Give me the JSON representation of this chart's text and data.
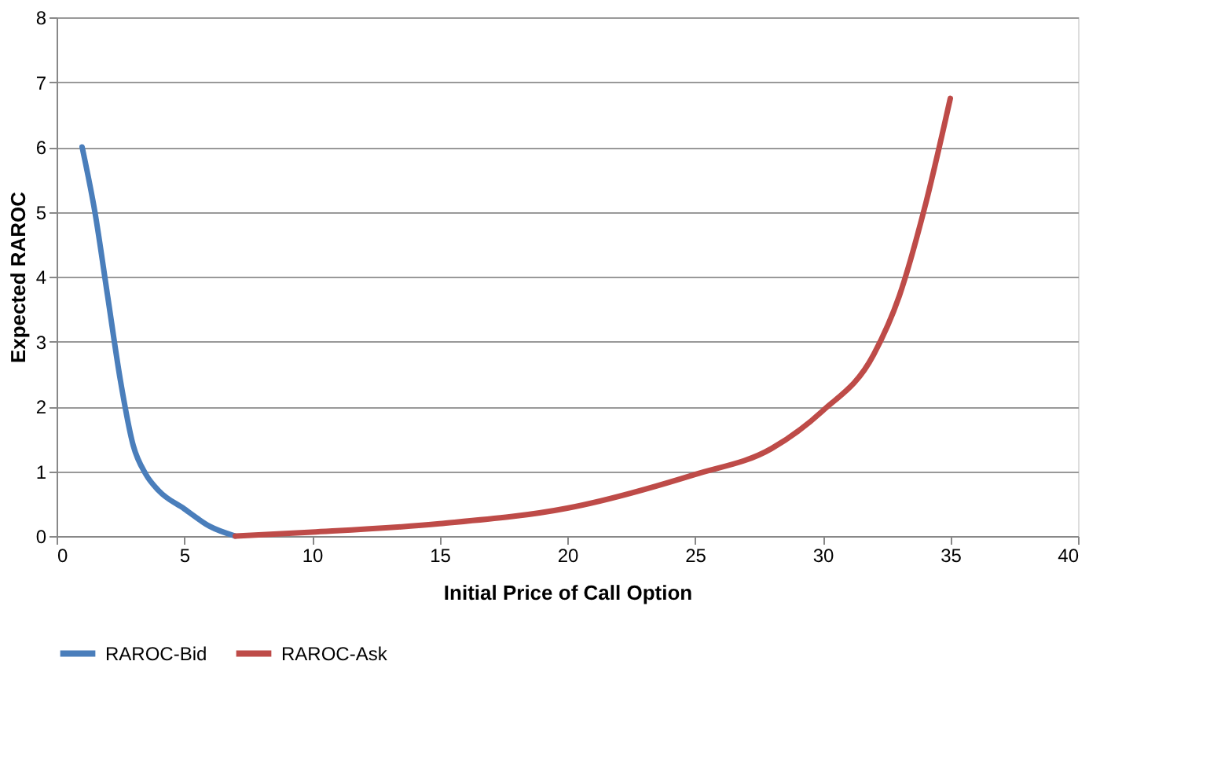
{
  "chart_data": {
    "type": "line",
    "xlabel": "Initial Price of Call Option",
    "ylabel": "Expected RAROC",
    "xlim": [
      0,
      40
    ],
    "xticks": [
      0,
      5,
      10,
      15,
      20,
      25,
      30,
      35,
      40
    ],
    "ylim": [
      0,
      8
    ],
    "yticks": [
      0,
      1,
      2,
      3,
      4,
      5,
      6,
      7,
      8
    ],
    "grid": "y",
    "legend": "bottom",
    "marker": "none",
    "line_style": "solid",
    "series": [
      {
        "name": "RAROC-Bid",
        "color": "#4a7ebb",
        "x": [
          1,
          1.5,
          2,
          2.5,
          3,
          3.5,
          4,
          5,
          6,
          7
        ],
        "values": [
          6.0,
          5.0,
          3.7,
          2.4,
          1.4,
          0.95,
          0.7,
          0.42,
          0.15,
          0
        ]
      },
      {
        "name": "RAROC-Ask",
        "color": "#be4b48",
        "x": [
          7,
          10,
          15,
          20,
          25,
          28,
          30,
          32,
          33,
          34,
          35
        ],
        "values": [
          0,
          0.06,
          0.19,
          0.43,
          0.95,
          1.35,
          1.93,
          2.8,
          3.7,
          5.07,
          6.75
        ]
      }
    ]
  }
}
